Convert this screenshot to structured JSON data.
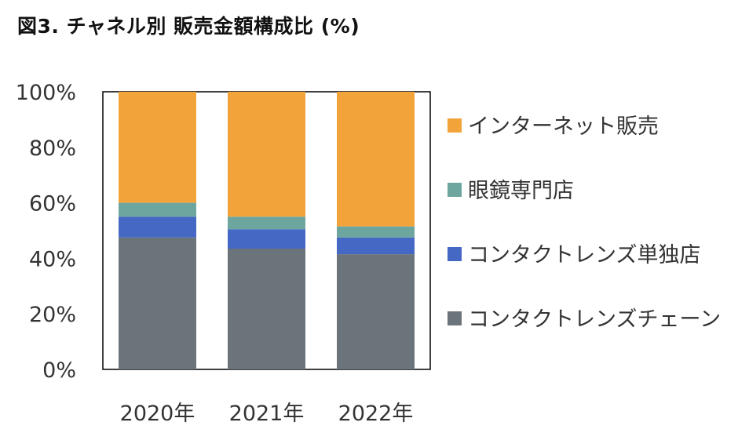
{
  "title": "図3. チャネル別 販売金額構成比 (%)",
  "chart_data": {
    "type": "bar",
    "stacked": true,
    "categories": [
      "2020年",
      "2021年",
      "2022年"
    ],
    "ylim": [
      0,
      100
    ],
    "yticks": [
      "0%",
      "20%",
      "40%",
      "60%",
      "80%",
      "100%"
    ],
    "grid": false,
    "legend_position": "right",
    "series": [
      {
        "name": "コンタクトレンズチェーン",
        "color": "#6b747a",
        "values": [
          47.5,
          43.5,
          41.5
        ]
      },
      {
        "name": "コンタクトレンズ単独店",
        "color": "#4468c4",
        "values": [
          7.5,
          7.0,
          6.0
        ]
      },
      {
        "name": "眼鏡専門店",
        "color": "#6da59f",
        "values": [
          5.0,
          4.5,
          4.0
        ]
      },
      {
        "name": "インターネット販売",
        "color": "#f2a43a",
        "values": [
          40.0,
          45.0,
          48.5
        ]
      }
    ]
  }
}
